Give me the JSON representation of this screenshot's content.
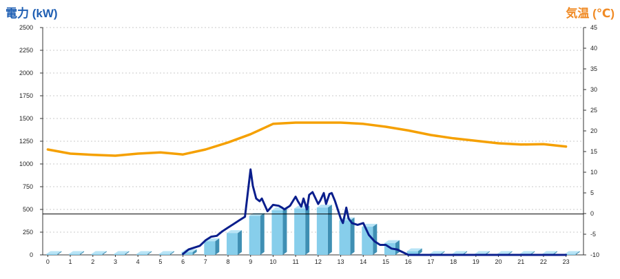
{
  "chart_data": {
    "type": "bar",
    "title": "",
    "ylabel_left": "電力 (kW)",
    "ylabel_right": "気温 (℃)",
    "xlabel": "",
    "grid": true,
    "y_left_ticks": [
      "0",
      "250",
      "500",
      "750",
      "1000",
      "1250",
      "1500",
      "1750",
      "2000",
      "2250",
      "2500"
    ],
    "y_right_ticks": [
      "-10",
      "-5",
      "0",
      "5",
      "10",
      "15",
      "20",
      "25",
      "30",
      "35",
      "40",
      "45"
    ],
    "ylim_left": [
      0,
      2500
    ],
    "ylim_right": [
      -10,
      45
    ],
    "categories": [
      "0",
      "1",
      "2",
      "3",
      "4",
      "5",
      "6",
      "7",
      "8",
      "9",
      "10",
      "11",
      "12",
      "13",
      "14",
      "15",
      "16",
      "17",
      "18",
      "19",
      "20",
      "21",
      "22",
      "23"
    ],
    "series": [
      {
        "type": "bar",
        "axis": "left",
        "color": "#87ceeb",
        "values": [
          10,
          10,
          10,
          10,
          10,
          10,
          30,
          150,
          240,
          430,
          490,
          510,
          520,
          380,
          310,
          130,
          40,
          10,
          10,
          10,
          10,
          10,
          10,
          10
        ]
      },
      {
        "type": "line",
        "axis": "left",
        "color": "#0a1e8c",
        "x": [
          6.0,
          6.25,
          6.5,
          6.75,
          7.0,
          7.25,
          7.5,
          7.75,
          8.0,
          8.25,
          8.5,
          8.75,
          9.0,
          9.1,
          9.25,
          9.4,
          9.5,
          9.75,
          10.0,
          10.25,
          10.4,
          10.5,
          10.75,
          11.0,
          11.1,
          11.25,
          11.35,
          11.5,
          11.6,
          11.75,
          12.0,
          12.1,
          12.25,
          12.35,
          12.5,
          12.6,
          12.75,
          13.0,
          13.1,
          13.25,
          13.35,
          13.5,
          13.75,
          14.0,
          14.25,
          14.5,
          14.75,
          15.0,
          15.25,
          15.5,
          15.75,
          16.0,
          16.5,
          17.0,
          18.0,
          19.0,
          20.0,
          21.0,
          22.0,
          23.0
        ],
        "values": [
          10,
          60,
          80,
          100,
          160,
          200,
          210,
          260,
          300,
          340,
          380,
          420,
          940,
          760,
          620,
          590,
          620,
          480,
          550,
          540,
          520,
          500,
          540,
          640,
          590,
          530,
          620,
          500,
          660,
          690,
          560,
          600,
          680,
          560,
          670,
          680,
          590,
          400,
          350,
          520,
          400,
          350,
          330,
          350,
          220,
          150,
          110,
          110,
          70,
          60,
          30,
          0,
          0,
          0,
          0,
          0,
          0,
          0,
          0,
          0
        ]
      },
      {
        "type": "line",
        "axis": "right",
        "color": "#f5a000",
        "x": [
          0,
          1,
          2,
          3,
          4,
          5,
          6,
          7,
          8,
          9,
          10,
          11,
          12,
          13,
          14,
          15,
          16,
          17,
          18,
          19,
          20,
          21,
          22,
          23
        ],
        "values": [
          15.5,
          14.5,
          14.2,
          14.0,
          14.5,
          14.8,
          14.3,
          15.5,
          17.2,
          19.2,
          21.7,
          22.0,
          22.0,
          22.0,
          21.7,
          21.0,
          20.1,
          19.0,
          18.2,
          17.6,
          17.0,
          16.7,
          16.8,
          16.2
        ]
      }
    ],
    "reference_line_left": 450
  }
}
